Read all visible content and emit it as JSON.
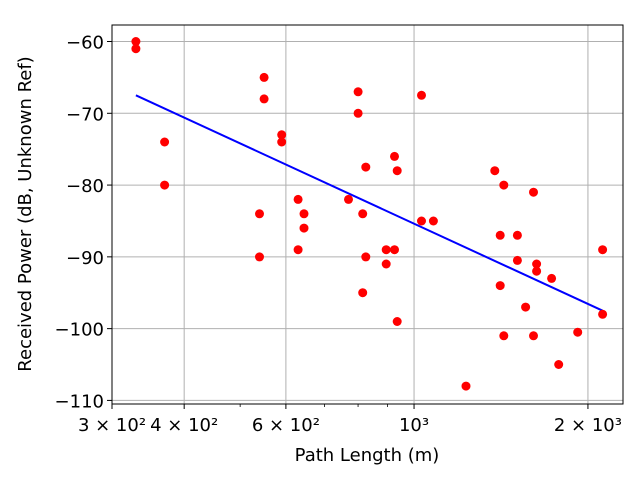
{
  "chart_data": {
    "type": "scatter",
    "title": "",
    "xlabel": "Path Length (m)",
    "ylabel": "Received Power (dB, Unknown Ref)",
    "xscale": "log",
    "xlim": [
      300,
      2300
    ],
    "ylim": [
      -110.5,
      -57.7
    ],
    "grid": true,
    "x_ticks": [
      {
        "value": 300,
        "label": "3 × 10²"
      },
      {
        "value": 400,
        "label": "4 × 10²"
      },
      {
        "value": 600,
        "label": "6 × 10²"
      },
      {
        "value": 1000,
        "label": "10³"
      },
      {
        "value": 2000,
        "label": "2 × 10³"
      }
    ],
    "x_minor_ticks": [
      500,
      700,
      800,
      900
    ],
    "y_ticks": [
      {
        "value": -60,
        "label": "−60"
      },
      {
        "value": -70,
        "label": "−70"
      },
      {
        "value": -80,
        "label": "−80"
      },
      {
        "value": -90,
        "label": "−90"
      },
      {
        "value": -100,
        "label": "−100"
      },
      {
        "value": -110,
        "label": "−110"
      }
    ],
    "series": [
      {
        "type": "scatter",
        "color": "#ff0000",
        "points": [
          [
            330,
            -60.0
          ],
          [
            330,
            -61.0
          ],
          [
            370,
            -74.0
          ],
          [
            370,
            -80.0
          ],
          [
            540,
            -84.0
          ],
          [
            540,
            -90.0
          ],
          [
            550,
            -65.0
          ],
          [
            550,
            -68.0
          ],
          [
            590,
            -73.0
          ],
          [
            590,
            -74.0
          ],
          [
            630,
            -82.0
          ],
          [
            630,
            -89.0
          ],
          [
            645,
            -84.0
          ],
          [
            645,
            -86.0
          ],
          [
            770,
            -82.0
          ],
          [
            800,
            -67.0
          ],
          [
            800,
            -70.0
          ],
          [
            815,
            -84.0
          ],
          [
            815,
            -95.0
          ],
          [
            825,
            -77.5
          ],
          [
            825,
            -90.0
          ],
          [
            895,
            -89.0
          ],
          [
            895,
            -91.0
          ],
          [
            925,
            -76.0
          ],
          [
            925,
            -89.0
          ],
          [
            935,
            -78.0
          ],
          [
            935,
            -99.0
          ],
          [
            1030,
            -67.5
          ],
          [
            1030,
            -85.0
          ],
          [
            1080,
            -85.0
          ],
          [
            1230,
            -108.0
          ],
          [
            1380,
            -78.0
          ],
          [
            1410,
            -87.0
          ],
          [
            1410,
            -94.0
          ],
          [
            1430,
            -80.0
          ],
          [
            1430,
            -101.0
          ],
          [
            1510,
            -87.0
          ],
          [
            1510,
            -90.5
          ],
          [
            1560,
            -97.0
          ],
          [
            1610,
            -81.0
          ],
          [
            1610,
            -101.0
          ],
          [
            1630,
            -91.0
          ],
          [
            1630,
            -92.0
          ],
          [
            1730,
            -93.0
          ],
          [
            1780,
            -105.0
          ],
          [
            1920,
            -100.5
          ],
          [
            2120,
            -89.0
          ],
          [
            2120,
            -98.0
          ]
        ]
      },
      {
        "type": "line",
        "color": "#0000ff",
        "points": [
          [
            330,
            -67.5
          ],
          [
            2120,
            -97.5
          ]
        ]
      }
    ]
  }
}
